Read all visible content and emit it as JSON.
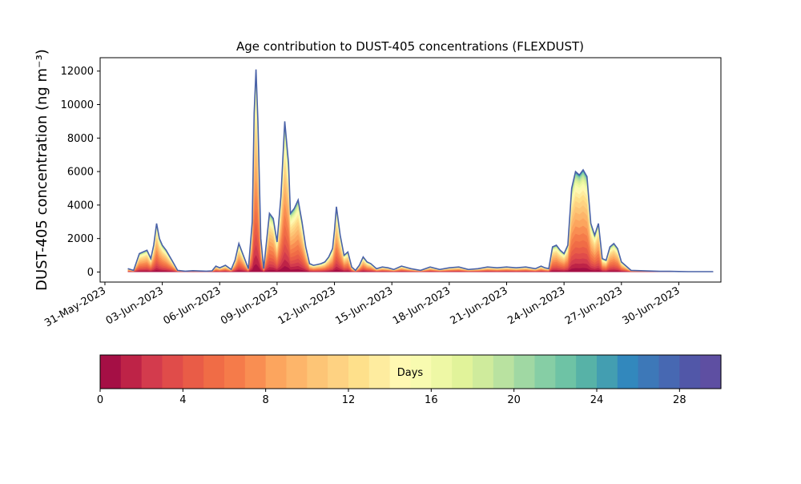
{
  "chart_data": {
    "type": "area",
    "title": "Age contribution to DUST-405 concentrations (FLEXDUST)",
    "ylabel": "DUST-405 concentration (ng m⁻³)",
    "xlabel": "",
    "x_tick_labels": [
      "31-May-2023",
      "03-Jun-2023",
      "06-Jun-2023",
      "09-Jun-2023",
      "12-Jun-2023",
      "15-Jun-2023",
      "18-Jun-2023",
      "21-Jun-2023",
      "24-Jun-2023",
      "27-Jun-2023",
      "30-Jun-2023"
    ],
    "y_ticks": [
      0,
      2000,
      4000,
      6000,
      8000,
      10000,
      12000
    ],
    "xlim_days": [
      -0.25,
      32.2
    ],
    "ylim": [
      -600,
      12800
    ],
    "grid": false,
    "colorbar": {
      "label": "Days",
      "range": [
        0,
        30
      ],
      "ticks": [
        0,
        4,
        8,
        12,
        16,
        20,
        24,
        28
      ],
      "colors": [
        "#a50f45",
        "#be2347",
        "#d33b4d",
        "#e04c4a",
        "#e95c47",
        "#f06c46",
        "#f57b4a",
        "#f98e52",
        "#fca55e",
        "#fdb56a",
        "#fdc576",
        "#fed282",
        "#fee08b",
        "#feec9f",
        "#fff8b2",
        "#f8fbb0",
        "#eef8a5",
        "#e1f39a",
        "#cfeb9c",
        "#b9e2a0",
        "#a0d8a3",
        "#86cea5",
        "#6ec3a5",
        "#57b2a7",
        "#439eb1",
        "#3288bd",
        "#3d78b8",
        "#4768b2",
        "#5157a8",
        "#5e4fa2"
      ]
    },
    "series_x_days": [
      1.2,
      1.5,
      1.8,
      2.0,
      2.2,
      2.4,
      2.55,
      2.7,
      2.85,
      3.0,
      3.2,
      3.5,
      3.8,
      4.2,
      4.6,
      5.0,
      5.3,
      5.6,
      5.8,
      6.0,
      6.3,
      6.6,
      6.8,
      7.0,
      7.3,
      7.5,
      7.7,
      7.8,
      7.9,
      8.0,
      8.15,
      8.3,
      8.6,
      8.8,
      9.0,
      9.2,
      9.4,
      9.6,
      9.7,
      9.9,
      10.1,
      10.3,
      10.5,
      10.7,
      10.9,
      11.1,
      11.3,
      11.5,
      11.7,
      11.9,
      12.0,
      12.1,
      12.3,
      12.5,
      12.7,
      12.9,
      13.1,
      13.3,
      13.5,
      13.7,
      13.9,
      14.2,
      14.5,
      14.8,
      15.1,
      15.5,
      16.0,
      16.5,
      17.0,
      17.5,
      18.0,
      18.5,
      19.0,
      19.5,
      20.0,
      20.5,
      21.0,
      21.5,
      22.0,
      22.5,
      22.8,
      23.0,
      23.2,
      23.4,
      23.6,
      23.8,
      24.0,
      24.2,
      24.4,
      24.6,
      24.8,
      25.0,
      25.2,
      25.4,
      25.6,
      25.8,
      26.0,
      26.2,
      26.4,
      26.6,
      26.8,
      27.0,
      27.5,
      28.0,
      28.5,
      29.0,
      29.5,
      30.0,
      30.5,
      31.0,
      31.5,
      31.8
    ],
    "total_ng_m3": [
      200,
      100,
      1100,
      1200,
      1300,
      800,
      1600,
      2900,
      2000,
      1600,
      1300,
      700,
      100,
      50,
      80,
      60,
      50,
      70,
      350,
      250,
      400,
      150,
      700,
      1700,
      800,
      200,
      3000,
      9500,
      12100,
      9000,
      2000,
      200,
      3500,
      3200,
      1800,
      4500,
      9000,
      6500,
      3500,
      3800,
      4300,
      3000,
      1500,
      500,
      400,
      450,
      500,
      600,
      900,
      1400,
      2500,
      3900,
      2200,
      1000,
      1200,
      300,
      100,
      400,
      900,
      600,
      500,
      200,
      300,
      250,
      150,
      350,
      200,
      100,
      300,
      150,
      250,
      300,
      150,
      200,
      300,
      250,
      300,
      250,
      300,
      200,
      350,
      250,
      200,
      1500,
      1600,
      1300,
      1100,
      1600,
      5000,
      6000,
      5800,
      6100,
      5700,
      2900,
      2200,
      2900,
      800,
      700,
      1500,
      1700,
      1400,
      600,
      100,
      80,
      60,
      40,
      40,
      30,
      20,
      20,
      20,
      20
    ]
  }
}
